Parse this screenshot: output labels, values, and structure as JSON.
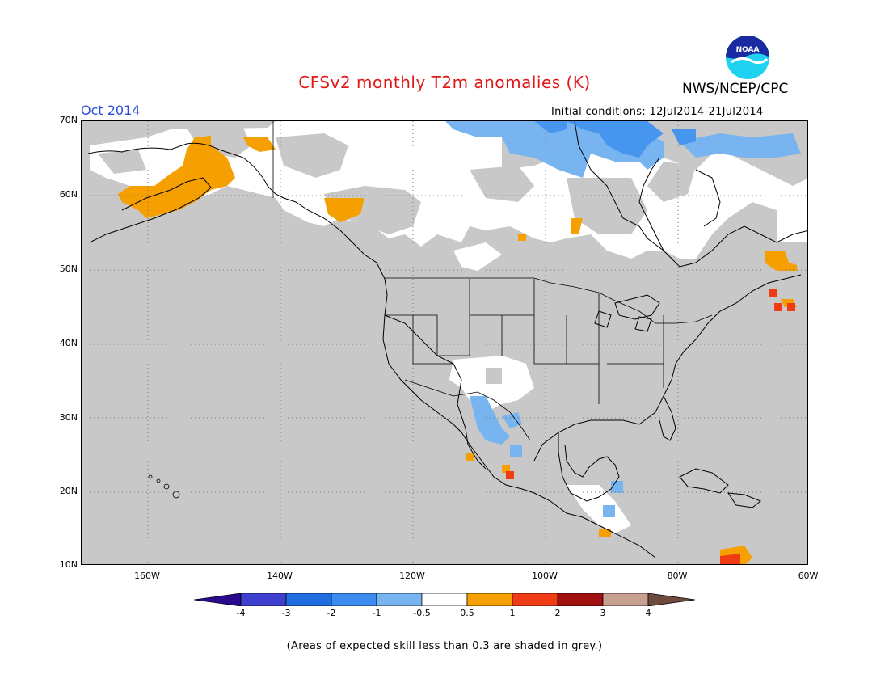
{
  "header": {
    "title": "CFSv2 monthly T2m anomalies (K)",
    "month": "Oct 2014",
    "agency": "NWS/NCEP/CPC",
    "initial_conditions": "Initial conditions: 12Jul2014-21Jul2014",
    "logo_text": "NOAA"
  },
  "map": {
    "lat_labels": [
      "70N",
      "60N",
      "50N",
      "40N",
      "30N",
      "20N",
      "10N"
    ],
    "lon_labels": [
      "160W",
      "140W",
      "120W",
      "100W",
      "80W",
      "60W"
    ],
    "colors": {
      "land_skill_low": "#c8c8c8",
      "neutral": "#ffffff",
      "cold_weak": "#78b4f0",
      "cold_mod": "#4696f0",
      "warm_weak": "#f5a000",
      "warm_mod": "#f03c14"
    }
  },
  "colorbar": {
    "labels": [
      "-4",
      "-3",
      "-2",
      "-1",
      "-0.5",
      "0.5",
      "1",
      "2",
      "3",
      "4"
    ],
    "colors": [
      "#2a0a8c",
      "#4040d0",
      "#1e6ee0",
      "#3c8cf0",
      "#78b4f0",
      "#ffffff",
      "#f5a000",
      "#f03c14",
      "#a01010",
      "#c8a090",
      "#6e4a3c"
    ]
  },
  "footnote": "(Areas of expected skill less than 0.3 are shaded in grey.)"
}
